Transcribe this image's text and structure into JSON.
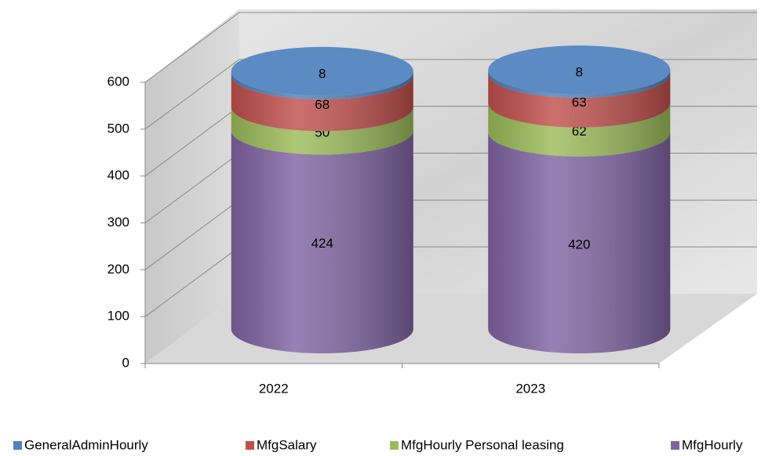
{
  "chart_data": {
    "type": "bar3d-cylinder-stacked",
    "categories": [
      "2022",
      "2023"
    ],
    "series": [
      {
        "name": "GeneralAdminHourly",
        "color": "#4f81bd",
        "values": [
          8,
          8
        ]
      },
      {
        "name": "MfgSalary",
        "color": "#c0504d",
        "values": [
          68,
          63
        ]
      },
      {
        "name": "MfgHourly Personal leasing",
        "color": "#9bbb59",
        "values": [
          50,
          62
        ]
      },
      {
        "name": "MfgHourly",
        "color": "#8064a2",
        "values": [
          424,
          420
        ]
      }
    ],
    "ylim": [
      0,
      600
    ],
    "yticks": [
      0,
      100,
      200,
      300,
      400,
      500,
      600
    ],
    "grid": true,
    "legend": "bottom"
  }
}
